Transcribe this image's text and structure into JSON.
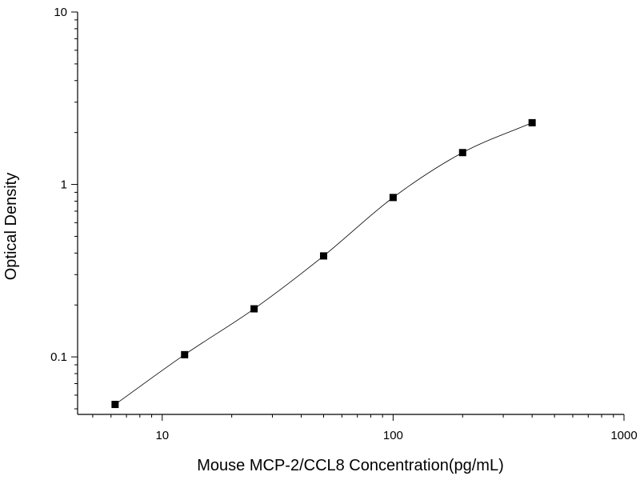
{
  "chart_data": {
    "type": "scatter",
    "title": "",
    "xlabel": "Mouse MCP-2/CCL8 Concentration(pg/mL)",
    "ylabel": "Optical Density",
    "x_scale": "log",
    "y_scale": "log",
    "xlim": [
      4.3,
      1000
    ],
    "ylim": [
      0.0464,
      10
    ],
    "x_ticks": [
      {
        "value": 10,
        "label": "10"
      },
      {
        "value": 100,
        "label": "100"
      },
      {
        "value": 1000,
        "label": "1000"
      }
    ],
    "y_ticks": [
      {
        "value": 0.1,
        "label": "0.1"
      },
      {
        "value": 1,
        "label": "1"
      },
      {
        "value": 10,
        "label": "10"
      }
    ],
    "grid": false,
    "legend": "none",
    "series": [
      {
        "marker": "square",
        "color": "#000000",
        "x": [
          6.25,
          12.5,
          25,
          50,
          100,
          200,
          400
        ],
        "y": [
          0.053,
          0.103,
          0.19,
          0.385,
          0.84,
          1.53,
          2.28
        ]
      }
    ],
    "fit_curve": {
      "color": "#000000",
      "x_range": [
        6.25,
        400
      ]
    }
  }
}
